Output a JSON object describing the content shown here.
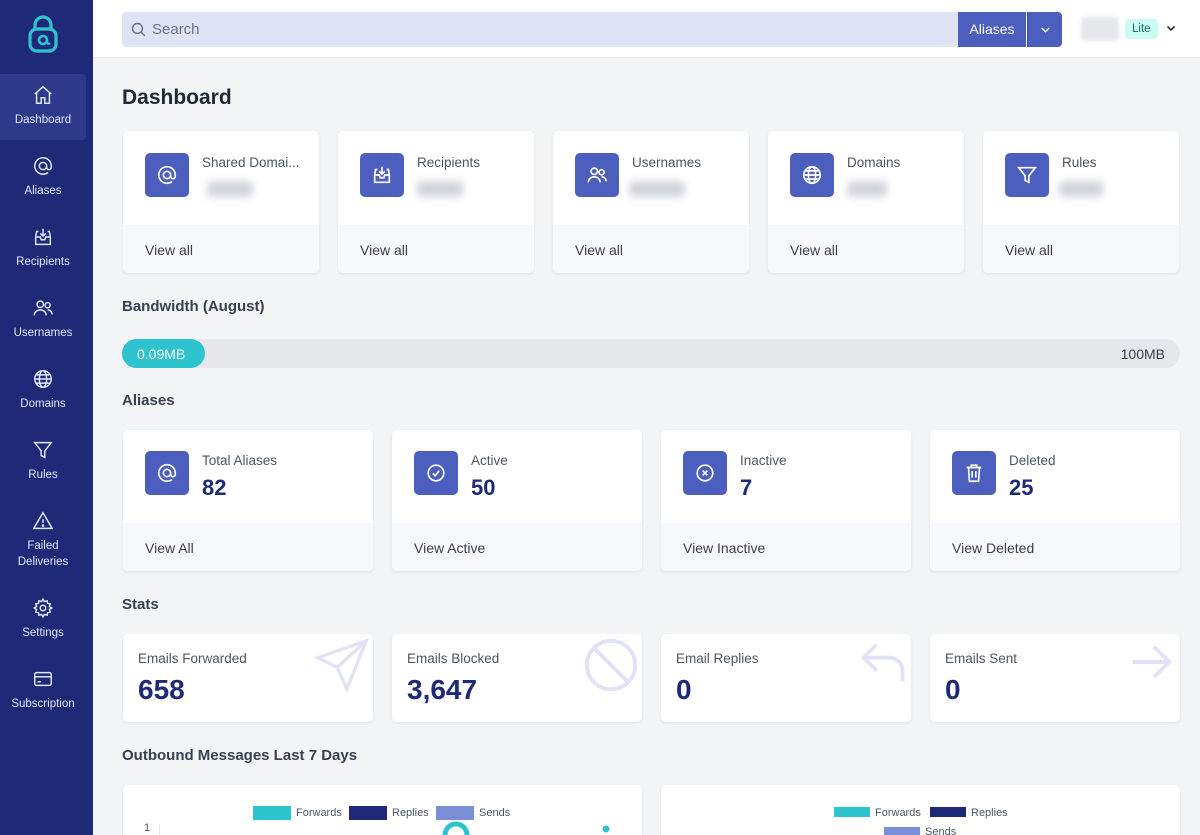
{
  "colors": {
    "sidebar": "#1e2a78",
    "accent": "#4c5fbf",
    "teal": "#2ec4cf",
    "navy": "#1e2a78",
    "periwinkle": "#7b8fd9"
  },
  "sidebar": {
    "items": [
      {
        "label": "Dashboard",
        "icon": "home-icon"
      },
      {
        "label": "Aliases",
        "icon": "at-icon"
      },
      {
        "label": "Recipients",
        "icon": "inbox-icon"
      },
      {
        "label": "Usernames",
        "icon": "users-icon"
      },
      {
        "label": "Domains",
        "icon": "globe-icon"
      },
      {
        "label": "Rules",
        "icon": "filter-icon"
      },
      {
        "label": "Failed Deliveries",
        "icon": "warning-icon"
      },
      {
        "label": "Settings",
        "icon": "gear-icon"
      },
      {
        "label": "Subscription",
        "icon": "credit-card-icon"
      }
    ]
  },
  "header": {
    "search_placeholder": "Search",
    "search_scope": "Aliases",
    "plan": "Lite"
  },
  "page_title": "Dashboard",
  "overview_cards": [
    {
      "label": "Shared Domai...",
      "link": "View all",
      "icon": "at-icon"
    },
    {
      "label": "Recipients",
      "link": "View all",
      "icon": "inbox-icon"
    },
    {
      "label": "Usernames",
      "link": "View all",
      "icon": "users-icon"
    },
    {
      "label": "Domains",
      "link": "View all",
      "icon": "globe-icon"
    },
    {
      "label": "Rules",
      "link": "View all",
      "icon": "filter-icon"
    }
  ],
  "bandwidth": {
    "title": "Bandwidth (August)",
    "used": "0.09MB",
    "limit": "100MB",
    "fill_fraction": 0.08
  },
  "aliases": {
    "title": "Aliases",
    "cards": [
      {
        "label": "Total Aliases",
        "value": "82",
        "link": "View All",
        "icon": "at-icon"
      },
      {
        "label": "Active",
        "value": "50",
        "link": "View Active",
        "icon": "check-circle-icon"
      },
      {
        "label": "Inactive",
        "value": "7",
        "link": "View Inactive",
        "icon": "x-circle-icon"
      },
      {
        "label": "Deleted",
        "value": "25",
        "link": "View Deleted",
        "icon": "trash-icon"
      }
    ]
  },
  "stats": {
    "title": "Stats",
    "cards": [
      {
        "label": "Emails Forwarded",
        "value": "658",
        "icon": "paper-plane-icon"
      },
      {
        "label": "Emails Blocked",
        "value": "3,647",
        "icon": "block-icon"
      },
      {
        "label": "Email Replies",
        "value": "0",
        "icon": "reply-icon"
      },
      {
        "label": "Emails Sent",
        "value": "0",
        "icon": "arrow-right-icon"
      }
    ]
  },
  "outbound": {
    "title": "Outbound Messages Last 7 Days",
    "legend": [
      "Forwards",
      "Replies",
      "Sends"
    ],
    "y_tick": "1"
  }
}
